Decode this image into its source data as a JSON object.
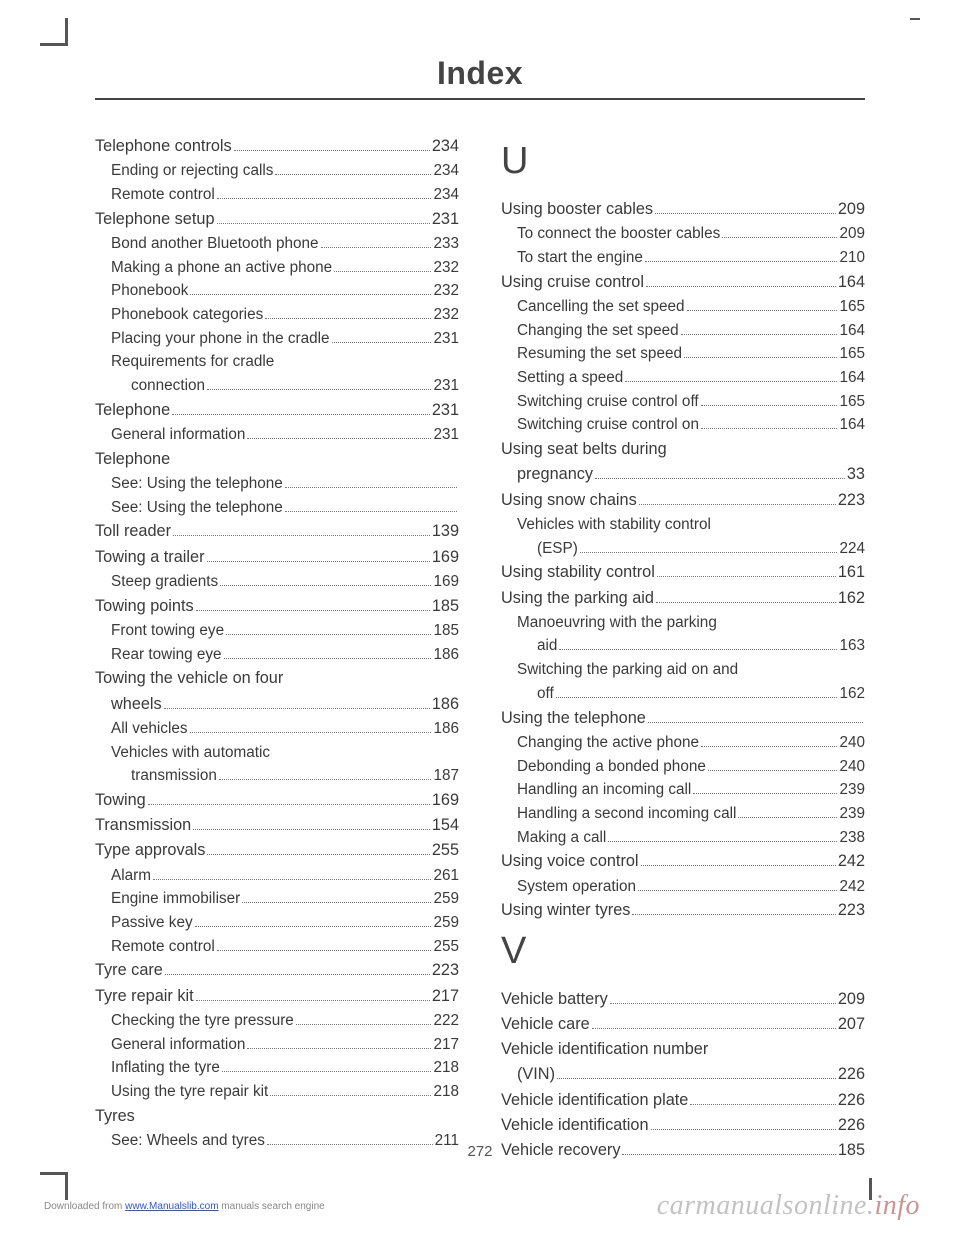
{
  "title": "Index",
  "page_number": "272",
  "footer_text_1": "Downloaded from ",
  "footer_link": "www.Manualslib.com",
  "footer_text_2": " manuals search engine",
  "watermark": {
    "a": "carm",
    "b": "anualsonline.",
    "c": "info"
  },
  "left": [
    {
      "t": "main",
      "l": "Telephone controls",
      "p": "234"
    },
    {
      "t": "sub",
      "l": "Ending or rejecting calls",
      "p": "234"
    },
    {
      "t": "sub",
      "l": "Remote control",
      "p": "234"
    },
    {
      "t": "main",
      "l": "Telephone setup",
      "p": "231"
    },
    {
      "t": "sub",
      "l": "Bond another Bluetooth phone",
      "p": "233"
    },
    {
      "t": "sub",
      "l": "Making a phone an active phone",
      "p": "232",
      "tight": true
    },
    {
      "t": "sub",
      "l": "Phonebook",
      "p": "232"
    },
    {
      "t": "sub",
      "l": "Phonebook categories",
      "p": "232"
    },
    {
      "t": "sub",
      "l": "Placing your phone in the cradle",
      "p": "231"
    },
    {
      "t": "sub",
      "l": "Requirements for cradle",
      "nopage": true
    },
    {
      "t": "cont",
      "l": "connection",
      "p": "231"
    },
    {
      "t": "main",
      "l": "Telephone",
      "p": "231"
    },
    {
      "t": "sub",
      "l": "General information",
      "p": "231"
    },
    {
      "t": "main",
      "l": "Telephone",
      "nopage": true,
      "nodots": true
    },
    {
      "t": "sub",
      "l": "See: Using the telephone",
      "p": "",
      "trail": true
    },
    {
      "t": "sub",
      "l": "See: Using the telephone",
      "p": "",
      "trail": true
    },
    {
      "t": "main",
      "l": "Toll reader",
      "p": "139"
    },
    {
      "t": "main",
      "l": "Towing a trailer",
      "p": "169"
    },
    {
      "t": "sub",
      "l": "Steep gradients",
      "p": "169"
    },
    {
      "t": "main",
      "l": "Towing points",
      "p": "185"
    },
    {
      "t": "sub",
      "l": "Front towing eye",
      "p": "185"
    },
    {
      "t": "sub",
      "l": "Rear towing eye",
      "p": "186"
    },
    {
      "t": "main",
      "l": "Towing the vehicle on four",
      "nopage": true,
      "nodots": true
    },
    {
      "t": "maincont",
      "l": "wheels",
      "p": "186"
    },
    {
      "t": "sub",
      "l": "All vehicles",
      "p": "186"
    },
    {
      "t": "sub",
      "l": "Vehicles with automatic",
      "nopage": true,
      "nodots": true
    },
    {
      "t": "cont",
      "l": "transmission",
      "p": "187"
    },
    {
      "t": "main",
      "l": "Towing",
      "p": "169"
    },
    {
      "t": "main",
      "l": "Transmission",
      "p": "154"
    },
    {
      "t": "main",
      "l": "Type approvals",
      "p": "255"
    },
    {
      "t": "sub",
      "l": "Alarm",
      "p": "261"
    },
    {
      "t": "sub",
      "l": "Engine immobiliser",
      "p": "259"
    },
    {
      "t": "sub",
      "l": "Passive key",
      "p": "259"
    },
    {
      "t": "sub",
      "l": "Remote control",
      "p": "255"
    },
    {
      "t": "main",
      "l": "Tyre care",
      "p": "223"
    },
    {
      "t": "main",
      "l": "Tyre repair kit",
      "p": "217"
    },
    {
      "t": "sub",
      "l": "Checking the tyre pressure",
      "p": "222"
    },
    {
      "t": "sub",
      "l": "General information",
      "p": "217"
    },
    {
      "t": "sub",
      "l": "Inflating the tyre",
      "p": "218"
    },
    {
      "t": "sub",
      "l": "Using the tyre repair kit",
      "p": "218"
    },
    {
      "t": "main",
      "l": "Tyres",
      "nopage": true,
      "nodots": true
    },
    {
      "t": "sub",
      "l": "See: Wheels and tyres",
      "p": "211"
    }
  ],
  "sections_right": [
    {
      "letter": "U",
      "items": [
        {
          "t": "main",
          "l": "Using booster cables",
          "p": "209"
        },
        {
          "t": "sub",
          "l": "To connect the booster cables",
          "p": "209"
        },
        {
          "t": "sub",
          "l": "To start the engine",
          "p": "210"
        },
        {
          "t": "main",
          "l": "Using cruise control",
          "p": "164"
        },
        {
          "t": "sub",
          "l": "Cancelling the set speed",
          "p": "165"
        },
        {
          "t": "sub",
          "l": "Changing the set speed",
          "p": "164"
        },
        {
          "t": "sub",
          "l": "Resuming the set speed",
          "p": "165"
        },
        {
          "t": "sub",
          "l": "Setting a speed",
          "p": "164"
        },
        {
          "t": "sub",
          "l": "Switching cruise control off",
          "p": "165"
        },
        {
          "t": "sub",
          "l": "Switching cruise control on",
          "p": "164"
        },
        {
          "t": "main",
          "l": "Using seat belts during",
          "nopage": true,
          "nodots": true
        },
        {
          "t": "maincont",
          "l": "pregnancy",
          "p": "33"
        },
        {
          "t": "main",
          "l": "Using snow chains",
          "p": "223"
        },
        {
          "t": "sub",
          "l": "Vehicles with stability control",
          "nopage": true,
          "nodots": true
        },
        {
          "t": "cont",
          "l": "(ESP)",
          "p": "224"
        },
        {
          "t": "main",
          "l": "Using stability control",
          "p": "161"
        },
        {
          "t": "main",
          "l": "Using the parking aid",
          "p": "162"
        },
        {
          "t": "sub",
          "l": "Manoeuvring with the parking",
          "nopage": true,
          "nodots": true
        },
        {
          "t": "cont",
          "l": "aid",
          "p": "163"
        },
        {
          "t": "sub",
          "l": "Switching the parking aid on and",
          "nopage": true,
          "nodots": true
        },
        {
          "t": "cont",
          "l": "off",
          "p": "162"
        },
        {
          "t": "main",
          "l": "Using the telephone",
          "p": "",
          "trail": true
        },
        {
          "t": "sub",
          "l": "Changing the active phone",
          "p": "240"
        },
        {
          "t": "sub",
          "l": "Debonding a bonded phone",
          "p": "240"
        },
        {
          "t": "sub",
          "l": "Handling an incoming call",
          "p": "239"
        },
        {
          "t": "sub",
          "l": "Handling a second incoming call",
          "p": "239"
        },
        {
          "t": "sub",
          "l": "Making a call",
          "p": "238"
        },
        {
          "t": "main",
          "l": "Using voice control",
          "p": "242"
        },
        {
          "t": "sub",
          "l": "System operation",
          "p": "242"
        },
        {
          "t": "main",
          "l": "Using winter tyres",
          "p": "223"
        }
      ]
    },
    {
      "letter": "V",
      "items": [
        {
          "t": "main",
          "l": "Vehicle battery",
          "p": "209"
        },
        {
          "t": "main",
          "l": "Vehicle care",
          "p": "207"
        },
        {
          "t": "main",
          "l": "Vehicle identification number",
          "nopage": true,
          "nodots": true
        },
        {
          "t": "maincont",
          "l": "(VIN)",
          "p": "226"
        },
        {
          "t": "main",
          "l": "Vehicle identification plate",
          "p": "226"
        },
        {
          "t": "main",
          "l": "Vehicle identification",
          "p": "226"
        },
        {
          "t": "main",
          "l": "Vehicle recovery",
          "p": "185"
        }
      ]
    }
  ]
}
